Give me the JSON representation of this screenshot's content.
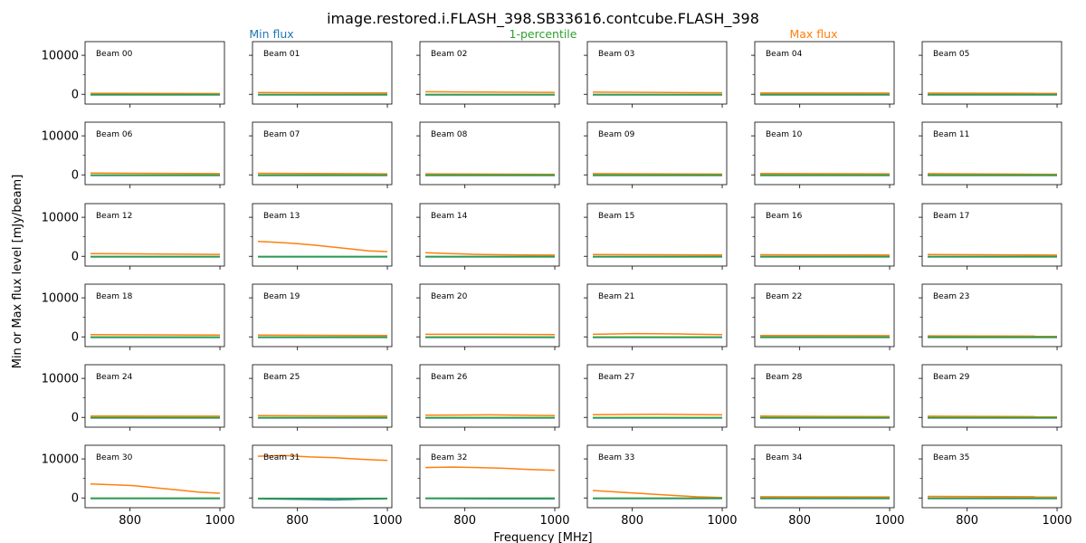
{
  "figure": {
    "title": "image.restored.i.FLASH_398.SB33616.contcube.FLASH_398",
    "xlabel": "Frequency [MHz]",
    "ylabel": "Min or Max flux level [mJy/beam]",
    "legend": [
      {
        "label": "Min flux",
        "color": "#1f77b4"
      },
      {
        "label": "1-percentile",
        "color": "#2ca02c"
      },
      {
        "label": "Max flux",
        "color": "#ff7f0e"
      }
    ]
  },
  "chart_data": {
    "type": "line",
    "layout": "6x6 grid of small multiples, shared axes",
    "xlim": [
      700,
      1010
    ],
    "ylim": [
      -2500,
      13500
    ],
    "x_ticks": [
      800,
      1000
    ],
    "y_ticks": [
      0,
      10000
    ],
    "x": [
      712,
      1000
    ],
    "series_names": [
      "Min flux",
      "1-percentile",
      "Max flux"
    ],
    "panels": [
      {
        "label": "Beam 00",
        "min": [
          -150,
          -150
        ],
        "p1": [
          -50,
          -50
        ],
        "max": [
          250,
          200
        ]
      },
      {
        "label": "Beam 01",
        "min": [
          -150,
          -150
        ],
        "p1": [
          -50,
          -50
        ],
        "max": [
          450,
          350
        ]
      },
      {
        "label": "Beam 02",
        "min": [
          -150,
          -150
        ],
        "p1": [
          -50,
          -50
        ],
        "max": [
          650,
          500
        ]
      },
      {
        "label": "Beam 03",
        "min": [
          -150,
          -150
        ],
        "p1": [
          -50,
          -50
        ],
        "max": [
          550,
          400
        ]
      },
      {
        "label": "Beam 04",
        "min": [
          -150,
          -150
        ],
        "p1": [
          -50,
          -50
        ],
        "max": [
          350,
          300
        ]
      },
      {
        "label": "Beam 05",
        "min": [
          -150,
          -150
        ],
        "p1": [
          -50,
          -50
        ],
        "max": [
          300,
          250
        ]
      },
      {
        "label": "Beam 06",
        "min": [
          -150,
          -150
        ],
        "p1": [
          -50,
          -50
        ],
        "max": [
          450,
          300
        ]
      },
      {
        "label": "Beam 07",
        "min": [
          -150,
          -150
        ],
        "p1": [
          -50,
          -50
        ],
        "max": [
          400,
          250
        ]
      },
      {
        "label": "Beam 08",
        "min": [
          -150,
          -150
        ],
        "p1": [
          -50,
          -50
        ],
        "max": [
          250,
          150
        ]
      },
      {
        "label": "Beam 09",
        "min": [
          -150,
          -150
        ],
        "p1": [
          -50,
          -50
        ],
        "max": [
          300,
          200
        ]
      },
      {
        "label": "Beam 10",
        "min": [
          -150,
          -150
        ],
        "p1": [
          -50,
          -50
        ],
        "max": [
          350,
          250
        ]
      },
      {
        "label": "Beam 11",
        "min": [
          -150,
          -150
        ],
        "p1": [
          -50,
          -50
        ],
        "max": [
          300,
          150
        ]
      },
      {
        "label": "Beam 12",
        "min": [
          -150,
          -150
        ],
        "p1": [
          -50,
          -50
        ],
        "max": [
          700,
          500
        ]
      },
      {
        "label": "Beam 13",
        "min": [
          -150,
          -150
        ],
        "p1": [
          -50,
          -50
        ],
        "max": [
          3800,
          3600,
          3300,
          2900,
          2400,
          1900,
          1400,
          1200
        ]
      },
      {
        "label": "Beam 14",
        "min": [
          -150,
          -150
        ],
        "p1": [
          -50,
          -50
        ],
        "max": [
          900,
          700,
          500,
          400,
          350,
          300
        ]
      },
      {
        "label": "Beam 15",
        "min": [
          -150,
          -150
        ],
        "p1": [
          -50,
          -50
        ],
        "max": [
          450,
          350
        ]
      },
      {
        "label": "Beam 16",
        "min": [
          -150,
          -150
        ],
        "p1": [
          -50,
          -50
        ],
        "max": [
          400,
          350
        ]
      },
      {
        "label": "Beam 17",
        "min": [
          -150,
          -150
        ],
        "p1": [
          -50,
          -50
        ],
        "max": [
          450,
          300
        ]
      },
      {
        "label": "Beam 18",
        "min": [
          -150,
          -150
        ],
        "p1": [
          -50,
          -50
        ],
        "max": [
          550,
          450
        ]
      },
      {
        "label": "Beam 19",
        "min": [
          -150,
          -150
        ],
        "p1": [
          -50,
          -50
        ],
        "max": [
          450,
          350
        ]
      },
      {
        "label": "Beam 20",
        "min": [
          -150,
          -150
        ],
        "p1": [
          -50,
          -50
        ],
        "max": [
          650,
          650,
          550
        ]
      },
      {
        "label": "Beam 21",
        "min": [
          -150,
          -150
        ],
        "p1": [
          -50,
          -50
        ],
        "max": [
          650,
          850,
          750,
          550
        ]
      },
      {
        "label": "Beam 22",
        "min": [
          -150,
          -150
        ],
        "p1": [
          -50,
          -50
        ],
        "max": [
          350,
          300
        ]
      },
      {
        "label": "Beam 23",
        "min": [
          -150,
          -150
        ],
        "p1": [
          -50,
          -50
        ],
        "max": [
          250,
          200
        ]
      },
      {
        "label": "Beam 24",
        "min": [
          -150,
          -150
        ],
        "p1": [
          -50,
          -50
        ],
        "max": [
          350,
          300
        ]
      },
      {
        "label": "Beam 25",
        "min": [
          -150,
          -150
        ],
        "p1": [
          -50,
          -50
        ],
        "max": [
          450,
          350
        ]
      },
      {
        "label": "Beam 26",
        "min": [
          -150,
          -150
        ],
        "p1": [
          -50,
          -50
        ],
        "max": [
          550,
          650,
          450
        ]
      },
      {
        "label": "Beam 27",
        "min": [
          -150,
          -150
        ],
        "p1": [
          -50,
          -50
        ],
        "max": [
          700,
          800,
          650
        ]
      },
      {
        "label": "Beam 28",
        "min": [
          -150,
          -150
        ],
        "p1": [
          -50,
          -50
        ],
        "max": [
          350,
          200
        ]
      },
      {
        "label": "Beam 29",
        "min": [
          -150,
          -150
        ],
        "p1": [
          -50,
          -50
        ],
        "max": [
          300,
          200
        ]
      },
      {
        "label": "Beam 30",
        "min": [
          -150,
          -150
        ],
        "p1": [
          -50,
          -50
        ],
        "max": [
          3600,
          3400,
          3150,
          2600,
          2100,
          1500,
          1200
        ]
      },
      {
        "label": "Beam 31",
        "min": [
          -200,
          -300,
          -400,
          -500,
          -300,
          -200
        ],
        "p1": [
          -100,
          -100
        ],
        "max": [
          10700,
          10900,
          10500,
          10300,
          9900,
          9600
        ]
      },
      {
        "label": "Beam 32",
        "min": [
          -150,
          -200,
          -200
        ],
        "p1": [
          -50,
          -50
        ],
        "max": [
          7800,
          7900,
          7800,
          7600,
          7300,
          7100
        ]
      },
      {
        "label": "Beam 33",
        "min": [
          -150,
          -150
        ],
        "p1": [
          -50,
          -50
        ],
        "max": [
          1900,
          1500,
          1100,
          700,
          300,
          100
        ]
      },
      {
        "label": "Beam 34",
        "min": [
          -150,
          -150
        ],
        "p1": [
          -50,
          -50
        ],
        "max": [
          300,
          250
        ]
      },
      {
        "label": "Beam 35",
        "min": [
          -150,
          -150
        ],
        "p1": [
          -50,
          -50
        ],
        "max": [
          400,
          300
        ]
      }
    ]
  }
}
